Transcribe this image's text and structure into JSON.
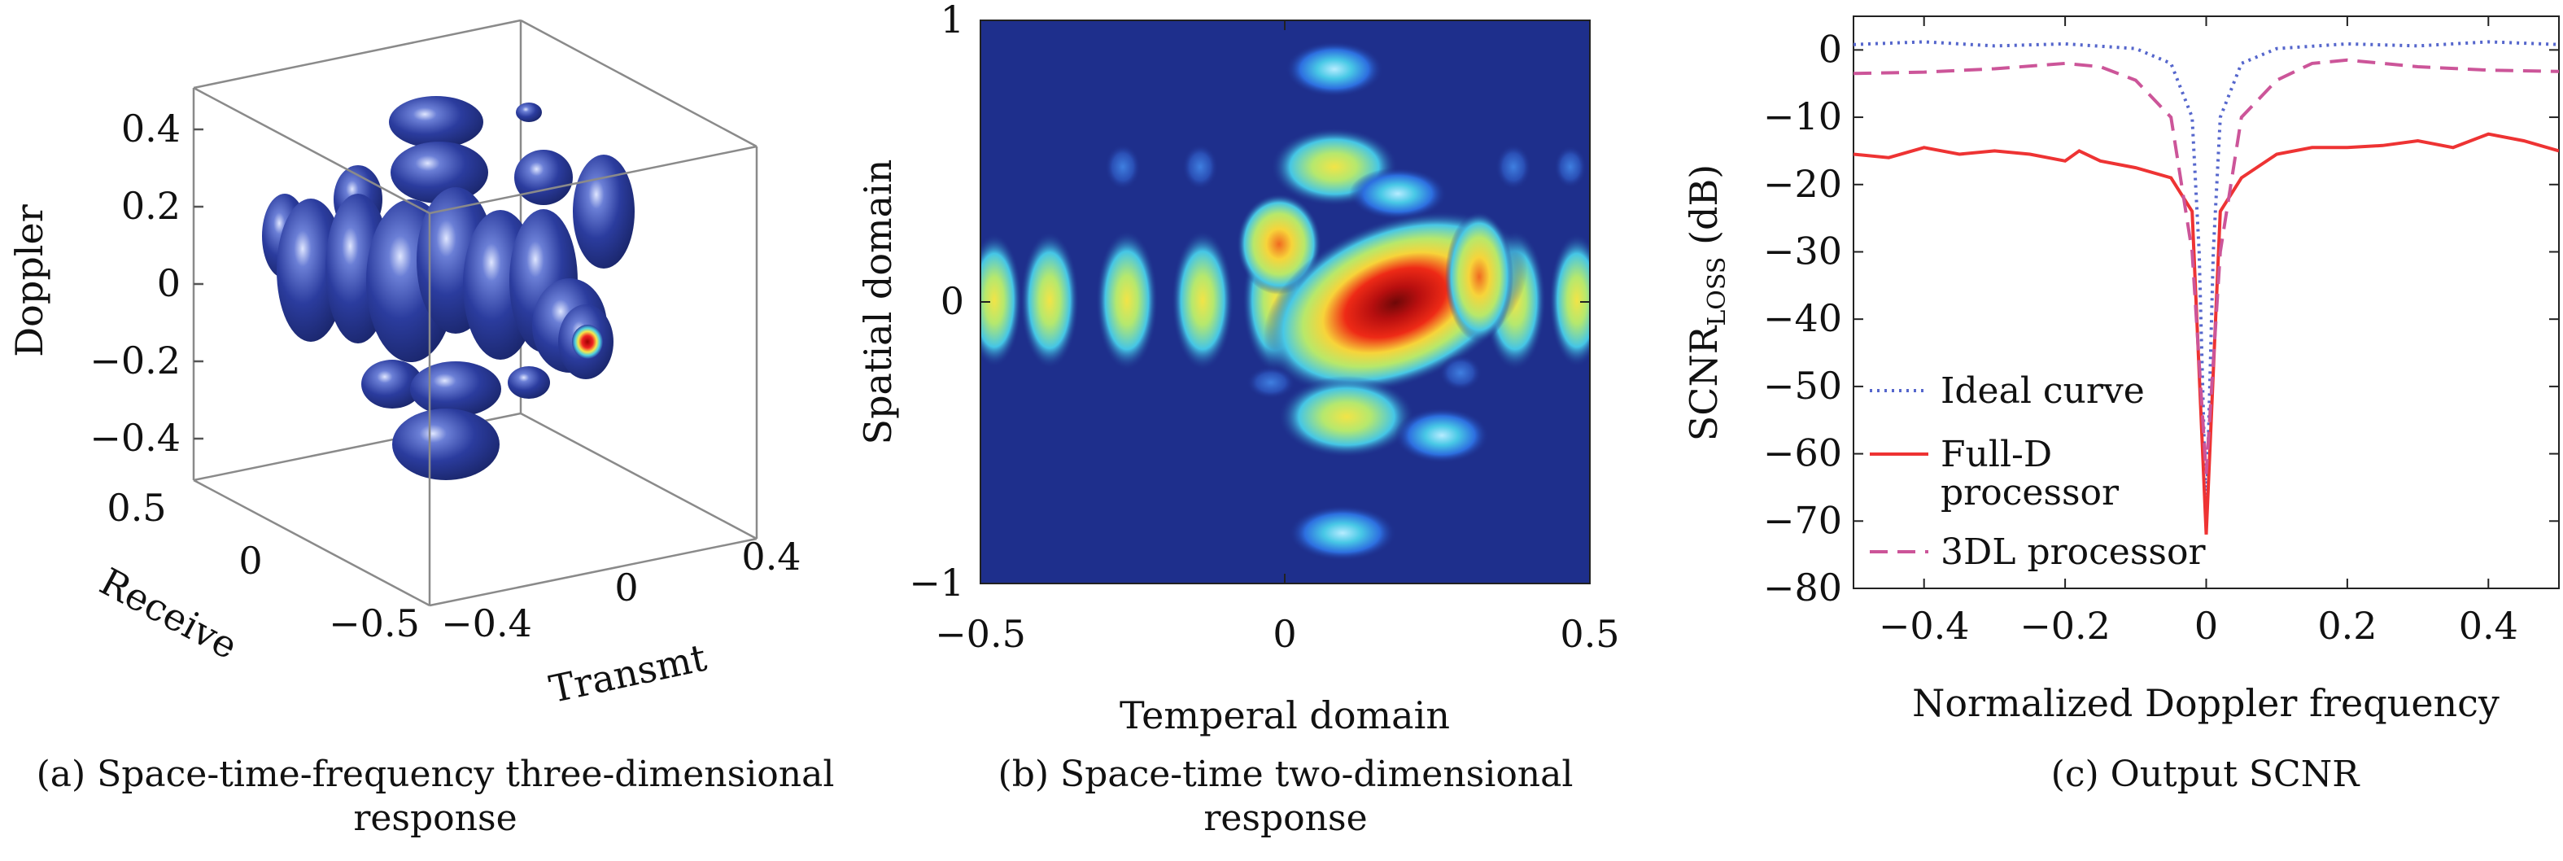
{
  "captions": {
    "a": "(a) Space-time-frequency three-dimensional response",
    "b": "(b) Space-time two-dimensional response",
    "c": "(c) Output SCNR"
  },
  "chart_data": [
    {
      "type": "other",
      "panel": "a",
      "zlabel": "Doppler",
      "xlabel": "Transmt",
      "ylabel": "Receive",
      "z_ticks": [
        "0.4",
        "0.2",
        "0",
        "−0.2",
        "−0.4"
      ],
      "x_ticks": [
        "−0.4",
        "0",
        "0.4"
      ],
      "y_ticks": [
        "0.5",
        "0",
        "−0.5"
      ],
      "colors": {
        "surface": "#2b3c9e",
        "highlight": "#dfe6ff",
        "peak": "#d40000"
      }
    },
    {
      "type": "heatmap",
      "panel": "b",
      "xlabel": "Temperal domain",
      "ylabel": "Spatial domain",
      "xlim": [
        -0.5,
        0.5
      ],
      "ylim": [
        -1,
        1
      ],
      "x_ticks": [
        "−0.5",
        "0",
        "0.5"
      ],
      "y_ticks": [
        "1",
        "0",
        "−1"
      ],
      "colormap": [
        "#1b2a8f",
        "#2d6fe0",
        "#41c7e8",
        "#b5e86e",
        "#f3e94a",
        "#f58a2a",
        "#d91717",
        "#7a0b0b"
      ],
      "background": "#1e2f8c"
    },
    {
      "type": "line",
      "panel": "c",
      "xlabel": "Normalized Doppler frequency",
      "ylabel": "SCNR",
      "ylabel_sub": "LOSS",
      "ylabel_unit": " (dB)",
      "xlim": [
        -0.5,
        0.5
      ],
      "ylim": [
        -80,
        5
      ],
      "x_ticks": [
        "−0.4",
        "−0.2",
        "0",
        "0.2",
        "0.4"
      ],
      "y_ticks": [
        "0",
        "−10",
        "−20",
        "−30",
        "−40",
        "−50",
        "−60",
        "−70",
        "−80"
      ],
      "legend_position": "bottom-left",
      "series": [
        {
          "name": "Ideal curve",
          "style": "dotted",
          "color": "#5566cc",
          "x": [
            -0.5,
            -0.4,
            -0.3,
            -0.2,
            -0.1,
            -0.05,
            -0.02,
            -0.01,
            0,
            0.01,
            0.02,
            0.05,
            0.1,
            0.2,
            0.3,
            0.4,
            0.5
          ],
          "y": [
            0.8,
            1.2,
            0.6,
            0.9,
            0.2,
            -2,
            -10,
            -30,
            -70,
            -30,
            -10,
            -2,
            0.2,
            0.9,
            0.6,
            1.2,
            0.8
          ]
        },
        {
          "name": "Full-D processor",
          "style": "solid",
          "color": "#ee3333",
          "x": [
            -0.5,
            -0.45,
            -0.4,
            -0.35,
            -0.3,
            -0.25,
            -0.2,
            -0.18,
            -0.15,
            -0.1,
            -0.05,
            -0.02,
            0,
            0.02,
            0.05,
            0.1,
            0.15,
            0.2,
            0.25,
            0.3,
            0.35,
            0.4,
            0.45,
            0.5
          ],
          "y": [
            -15.5,
            -16,
            -14.5,
            -15.5,
            -15,
            -15.5,
            -16.5,
            -15,
            -16.5,
            -17.5,
            -19,
            -24,
            -72,
            -24,
            -19,
            -15.5,
            -14.5,
            -14.5,
            -14.2,
            -13.5,
            -14.5,
            -12.5,
            -13.5,
            -15
          ]
        },
        {
          "name": "3DL processor",
          "style": "dashed",
          "color": "#cc5599",
          "x": [
            -0.5,
            -0.4,
            -0.3,
            -0.2,
            -0.15,
            -0.1,
            -0.05,
            -0.02,
            0,
            0.02,
            0.05,
            0.1,
            0.15,
            0.2,
            0.3,
            0.4,
            0.5
          ],
          "y": [
            -3.5,
            -3.3,
            -2.8,
            -2,
            -2.5,
            -4.5,
            -10,
            -30,
            -63,
            -30,
            -10,
            -4.5,
            -2,
            -1.5,
            -2.5,
            -3,
            -3.2
          ]
        }
      ]
    }
  ]
}
